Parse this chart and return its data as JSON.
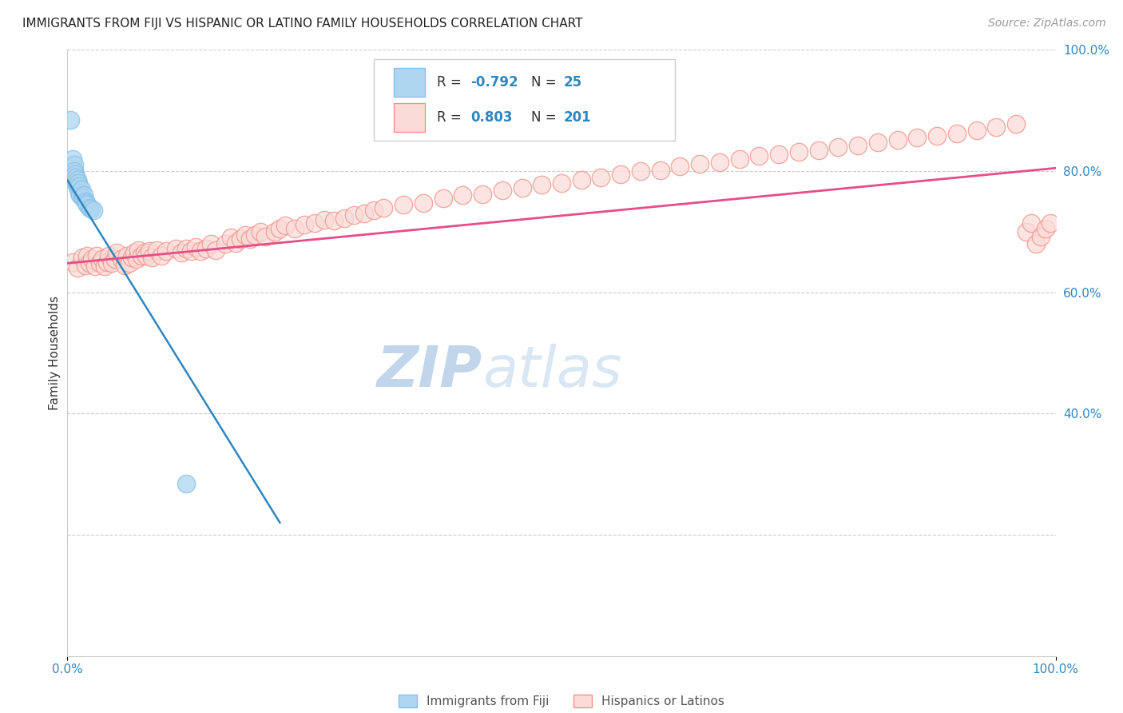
{
  "title": "IMMIGRANTS FROM FIJI VS HISPANIC OR LATINO FAMILY HOUSEHOLDS CORRELATION CHART",
  "source": "Source: ZipAtlas.com",
  "ylabel": "Family Households",
  "xmin": 0.0,
  "xmax": 1.0,
  "ymin": 0.0,
  "ymax": 1.0,
  "yticks": [
    0.0,
    0.2,
    0.4,
    0.6,
    0.8,
    1.0
  ],
  "ytick_labels": [
    "",
    "",
    "40.0%",
    "60.0%",
    "80.0%",
    "100.0%"
  ],
  "fiji_color": "#85c1e9",
  "fiji_face_color": "#aed6f1",
  "hispanic_color": "#f1948a",
  "hispanic_face_color": "#fadbd8",
  "blue_line_color": "#2e86c1",
  "pink_line_color": "#e74c8b",
  "watermark_zip_color": "#d6eaf8",
  "watermark_atlas_color": "#d6eaf8",
  "grid_color": "#cccccc",
  "background_color": "#ffffff",
  "tick_color": "#2e86c1",
  "fiji_scatter_x": [
    0.003,
    0.005,
    0.007,
    0.007,
    0.008,
    0.009,
    0.009,
    0.01,
    0.01,
    0.011,
    0.011,
    0.012,
    0.012,
    0.013,
    0.014,
    0.015,
    0.016,
    0.017,
    0.018,
    0.019,
    0.02,
    0.022,
    0.024,
    0.026,
    0.12
  ],
  "fiji_scatter_y": [
    0.885,
    0.82,
    0.81,
    0.8,
    0.795,
    0.79,
    0.78,
    0.785,
    0.775,
    0.78,
    0.77,
    0.775,
    0.765,
    0.76,
    0.77,
    0.758,
    0.755,
    0.76,
    0.75,
    0.748,
    0.745,
    0.74,
    0.738,
    0.735,
    0.285
  ],
  "hispanic_scatter_x": [
    0.005,
    0.01,
    0.015,
    0.018,
    0.02,
    0.022,
    0.025,
    0.028,
    0.03,
    0.033,
    0.035,
    0.038,
    0.04,
    0.042,
    0.045,
    0.048,
    0.05,
    0.055,
    0.058,
    0.06,
    0.063,
    0.065,
    0.068,
    0.07,
    0.072,
    0.075,
    0.078,
    0.08,
    0.083,
    0.085,
    0.09,
    0.095,
    0.1,
    0.11,
    0.115,
    0.12,
    0.125,
    0.13,
    0.135,
    0.14,
    0.145,
    0.15,
    0.16,
    0.165,
    0.17,
    0.175,
    0.18,
    0.185,
    0.19,
    0.195,
    0.2,
    0.21,
    0.215,
    0.22,
    0.23,
    0.24,
    0.25,
    0.26,
    0.27,
    0.28,
    0.29,
    0.3,
    0.31,
    0.32,
    0.34,
    0.36,
    0.38,
    0.4,
    0.42,
    0.44,
    0.46,
    0.48,
    0.5,
    0.52,
    0.54,
    0.56,
    0.58,
    0.6,
    0.62,
    0.64,
    0.66,
    0.68,
    0.7,
    0.72,
    0.74,
    0.76,
    0.78,
    0.8,
    0.82,
    0.84,
    0.86,
    0.88,
    0.9,
    0.92,
    0.94,
    0.96,
    0.97,
    0.975,
    0.98,
    0.985,
    0.99,
    0.995
  ],
  "hispanic_scatter_y": [
    0.65,
    0.64,
    0.658,
    0.645,
    0.66,
    0.648,
    0.655,
    0.643,
    0.66,
    0.648,
    0.655,
    0.643,
    0.65,
    0.66,
    0.648,
    0.655,
    0.665,
    0.655,
    0.645,
    0.66,
    0.648,
    0.658,
    0.665,
    0.655,
    0.67,
    0.66,
    0.665,
    0.66,
    0.668,
    0.658,
    0.67,
    0.66,
    0.668,
    0.672,
    0.665,
    0.672,
    0.668,
    0.675,
    0.668,
    0.672,
    0.68,
    0.67,
    0.68,
    0.69,
    0.682,
    0.688,
    0.695,
    0.688,
    0.695,
    0.7,
    0.692,
    0.7,
    0.705,
    0.71,
    0.705,
    0.712,
    0.715,
    0.72,
    0.718,
    0.722,
    0.728,
    0.73,
    0.735,
    0.74,
    0.745,
    0.748,
    0.755,
    0.76,
    0.762,
    0.768,
    0.772,
    0.778,
    0.78,
    0.785,
    0.79,
    0.795,
    0.8,
    0.802,
    0.808,
    0.812,
    0.815,
    0.82,
    0.825,
    0.828,
    0.832,
    0.835,
    0.84,
    0.842,
    0.848,
    0.852,
    0.855,
    0.858,
    0.862,
    0.868,
    0.872,
    0.878,
    0.7,
    0.715,
    0.68,
    0.692,
    0.705,
    0.715
  ],
  "blue_line_x0": 0.0,
  "blue_line_y0": 0.785,
  "blue_line_x1": 0.215,
  "blue_line_y1": 0.22,
  "pink_line_x0": 0.0,
  "pink_line_y0": 0.648,
  "pink_line_x1": 1.0,
  "pink_line_y1": 0.805
}
